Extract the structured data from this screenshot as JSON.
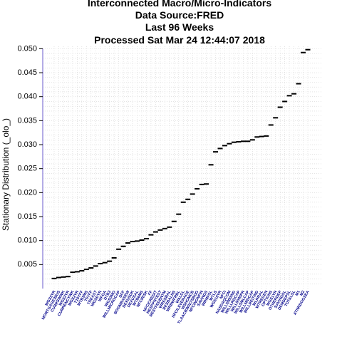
{
  "chart_data": {
    "type": "scatter",
    "title_lines": [
      "Interconnected Macro/Micro-Indicators",
      "Data Source:FRED",
      "Last  96  Weeks",
      "Processed  Sat Mar 24 12:44:07 2018"
    ],
    "ylabel": "Stationary Distribution (_olo_)",
    "xlabel": "",
    "ylim": [
      0.0,
      0.0505
    ],
    "yticks": [
      "0.005",
      "0.010",
      "0.015",
      "0.020",
      "0.025",
      "0.030",
      "0.035",
      "0.040",
      "0.045",
      "0.050"
    ],
    "grid": true,
    "points": [
      {
        "label": "WGS5YR",
        "value": 0.0021
      },
      {
        "label": "MORTGAGE30US",
        "value": 0.0023
      },
      {
        "label": "CURRSWWK",
        "value": 0.0024
      },
      {
        "label": "WGS3YR",
        "value": 0.0025
      },
      {
        "label": "CURRENCYWK",
        "value": 0.0034
      },
      {
        "label": "WGS2YR",
        "value": 0.0035
      },
      {
        "label": "T10YFF",
        "value": 0.0037
      },
      {
        "label": "WTB3MS",
        "value": 0.004
      },
      {
        "label": "T5YFF",
        "value": 0.0043
      },
      {
        "label": "TREAST",
        "value": 0.0047
      },
      {
        "label": "WGSDYR",
        "value": 0.0052
      },
      {
        "label": "WFGA",
        "value": 0.0054
      },
      {
        "label": "DTB3",
        "value": 0.0057
      },
      {
        "label": "WGS3MO",
        "value": 0.0064
      },
      {
        "label": "WILLMICROCAP",
        "value": 0.0082
      },
      {
        "label": "DFF",
        "value": 0.0088
      },
      {
        "label": "BOGMBASEW",
        "value": 0.0095
      },
      {
        "label": "DEXUSUK",
        "value": 0.0098
      },
      {
        "label": "DEXUSAL",
        "value": 0.0099
      },
      {
        "label": "WTB6MS",
        "value": 0.0101
      },
      {
        "label": "NFCIRISK",
        "value": 0.0104
      },
      {
        "label": "FF",
        "value": 0.0112
      },
      {
        "label": "NFCICREDIT",
        "value": 0.0118
      },
      {
        "label": "RESPPNTEST",
        "value": 0.0122
      },
      {
        "label": "RESTFEDBNTM",
        "value": 0.0125
      },
      {
        "label": "WRESBAL",
        "value": 0.0128
      },
      {
        "label": "RESBALNS",
        "value": 0.014
      },
      {
        "label": "WRBWFRBL",
        "value": 0.0155
      },
      {
        "label": "WALCL",
        "value": 0.018
      },
      {
        "label": "NFCILEVERAGE",
        "value": 0.0186
      },
      {
        "label": "WSHOMCB",
        "value": 0.0197
      },
      {
        "label": "TLAACBW027SBOG",
        "value": 0.0208
      },
      {
        "label": "NFCINONFIN",
        "value": 0.0217
      },
      {
        "label": "SAVINGS",
        "value": 0.0218
      },
      {
        "label": "WRMFSL",
        "value": 0.0258
      },
      {
        "label": "WTLS",
        "value": 0.0285
      },
      {
        "label": "WGS10YR",
        "value": 0.0292
      },
      {
        "label": "NFCI",
        "value": 0.0298
      },
      {
        "label": "NASDAQCOM",
        "value": 0.0302
      },
      {
        "label": "WILL5000IND",
        "value": 0.0305
      },
      {
        "label": "WILLLRGCAP",
        "value": 0.0306
      },
      {
        "label": "WILL5000PR",
        "value": 0.0307
      },
      {
        "label": "WILLSMLCAP",
        "value": 0.0307
      },
      {
        "label": "WILLMIDCAP",
        "value": 0.031
      },
      {
        "label": "WILLREITIND",
        "value": 0.0316
      },
      {
        "label": "WLRRAL",
        "value": 0.0317
      },
      {
        "label": "WTREGEN",
        "value": 0.0318
      },
      {
        "label": "OPTIONS",
        "value": 0.0341
      },
      {
        "label": "WGS1YR",
        "value": 0.0356
      },
      {
        "label": "OTHERDEP",
        "value": 0.0378
      },
      {
        "label": "SAVINGSL",
        "value": 0.039
      },
      {
        "label": "DEMDEPSL",
        "value": 0.0402
      },
      {
        "label": "TOTALSL",
        "value": 0.0406
      },
      {
        "label": "M1",
        "value": 0.0427
      },
      {
        "label": "M2",
        "value": 0.0492
      },
      {
        "label": "ATNRDOGSEA",
        "value": 0.0498
      }
    ]
  }
}
